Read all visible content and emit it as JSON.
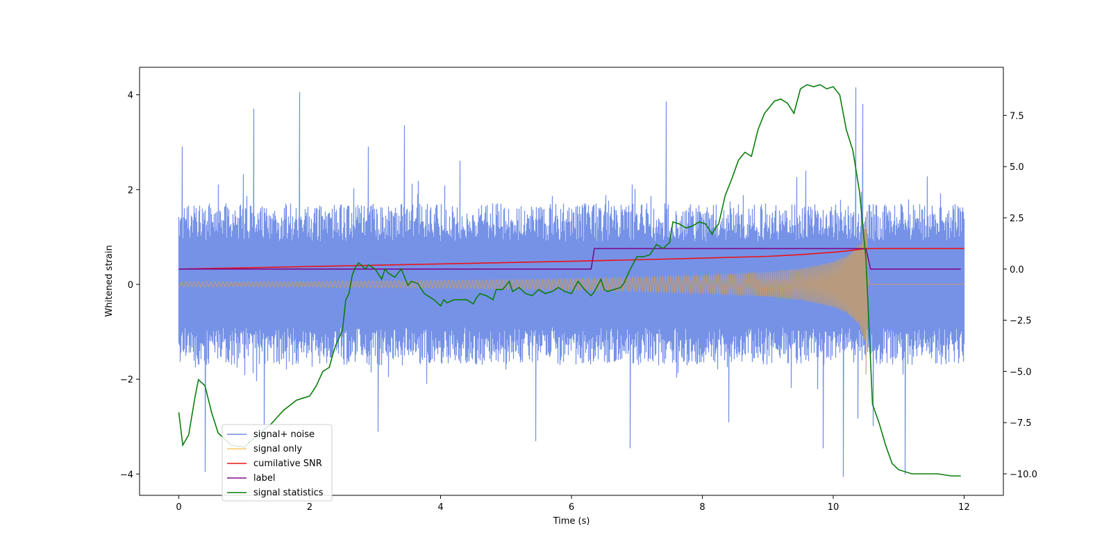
{
  "chart_data": {
    "type": "line",
    "title": "",
    "xlabel": "Time (s)",
    "ylabel_left": "Whitened strain",
    "ylabel_right": "",
    "xlim": [
      -0.6,
      12.6
    ],
    "ylim_left": [
      -4.45,
      4.58
    ],
    "ylim_right": [
      -11.05,
      9.85
    ],
    "x_ticks": [
      0,
      2,
      4,
      6,
      8,
      10,
      12
    ],
    "y_left_ticks": [
      -4,
      -2,
      0,
      2,
      4
    ],
    "y_right_ticks": [
      -10.0,
      -7.5,
      -5.0,
      -2.5,
      0.0,
      2.5,
      5.0,
      7.5
    ],
    "grid": false,
    "legend_position": "lower-left",
    "colors": {
      "signal_plus_noise": "#6f8ce6",
      "signal_only": "#f5c76b",
      "signal_overlap": "#bc9c78",
      "cumulative_snr": "#ee1111",
      "label": "#7b0a8a",
      "signal_statistics": "#0a7d0a"
    },
    "series": [
      {
        "name": "signal+ noise",
        "axis": "left",
        "description": "dense whitened strain time series, roughly Gaussian noise",
        "x_range": [
          0,
          12
        ],
        "typical_envelope": [
          -2.0,
          2.0
        ],
        "peaks_high": [
          [
            0.05,
            2.9
          ],
          [
            0.6,
            2.1
          ],
          [
            1.15,
            3.7
          ],
          [
            1.85,
            4.05
          ],
          [
            2.9,
            2.9
          ],
          [
            3.45,
            3.35
          ],
          [
            4.3,
            2.6
          ],
          [
            7.45,
            3.85
          ],
          [
            10.35,
            4.15
          ],
          [
            10.45,
            3.8
          ]
        ],
        "peaks_low": [
          [
            0.4,
            -3.95
          ],
          [
            1.3,
            -3.3
          ],
          [
            3.05,
            -3.1
          ],
          [
            5.45,
            -3.3
          ],
          [
            6.9,
            -3.45
          ],
          [
            8.4,
            -2.9
          ],
          [
            9.85,
            -3.45
          ],
          [
            10.15,
            -4.05
          ],
          [
            11.1,
            -4.0
          ]
        ]
      },
      {
        "name": "signal only",
        "axis": "left",
        "description": "chirp waveform, amplitude envelope growing toward merger then zero",
        "envelope": {
          "x": [
            0,
            2,
            4,
            6,
            7,
            8,
            9,
            9.5,
            10,
            10.2,
            10.4,
            10.5,
            10.55,
            12
          ],
          "amp": [
            0.05,
            0.06,
            0.08,
            0.12,
            0.15,
            0.19,
            0.26,
            0.33,
            0.48,
            0.6,
            0.85,
            1.3,
            0.0,
            0.0
          ]
        },
        "peak": [
          10.52,
          1.55
        ],
        "trough": [
          10.5,
          -1.9
        ]
      },
      {
        "name": "cumilative SNR",
        "axis": "right",
        "x": [
          0,
          2,
          4,
          6,
          7,
          8,
          9,
          9.5,
          10,
          10.2,
          10.4,
          10.5,
          10.55,
          12
        ],
        "y": [
          0.0,
          0.12,
          0.25,
          0.38,
          0.45,
          0.53,
          0.62,
          0.7,
          0.82,
          0.88,
          0.96,
          1.0,
          1.0,
          1.0
        ]
      },
      {
        "name": "label",
        "axis": "right",
        "x": [
          0,
          6.3,
          6.35,
          10.5,
          10.57,
          11.95
        ],
        "y": [
          0.0,
          0.0,
          1.0,
          1.0,
          0.0,
          0.0
        ]
      },
      {
        "name": "signal statistics",
        "axis": "right",
        "x": [
          0.0,
          0.06,
          0.15,
          0.25,
          0.3,
          0.4,
          0.5,
          0.6,
          0.8,
          1.0,
          1.2,
          1.4,
          1.6,
          1.8,
          1.9,
          2.0,
          2.1,
          2.2,
          2.3,
          2.35,
          2.4,
          2.5,
          2.55,
          2.6,
          2.65,
          2.7,
          2.75,
          2.85,
          2.9,
          3.0,
          3.1,
          3.15,
          3.2,
          3.3,
          3.4,
          3.5,
          3.55,
          3.65,
          3.75,
          3.8,
          3.9,
          4.0,
          4.05,
          4.1,
          4.2,
          4.3,
          4.4,
          4.5,
          4.55,
          4.6,
          4.7,
          4.8,
          4.85,
          4.95,
          5.0,
          5.05,
          5.1,
          5.2,
          5.3,
          5.4,
          5.5,
          5.6,
          5.7,
          5.8,
          5.9,
          6.0,
          6.05,
          6.1,
          6.2,
          6.3,
          6.35,
          6.45,
          6.5,
          6.55,
          6.65,
          6.75,
          6.8,
          6.9,
          7.0,
          7.1,
          7.2,
          7.3,
          7.4,
          7.5,
          7.55,
          7.65,
          7.75,
          7.85,
          7.95,
          8.05,
          8.15,
          8.2,
          8.25,
          8.35,
          8.45,
          8.55,
          8.65,
          8.75,
          8.85,
          8.95,
          9.1,
          9.2,
          9.3,
          9.4,
          9.5,
          9.6,
          9.7,
          9.8,
          9.9,
          10.0,
          10.1,
          10.2,
          10.3,
          10.4,
          10.5,
          10.6,
          10.7,
          10.8,
          10.9,
          11.0,
          11.2,
          11.4,
          11.6,
          11.8,
          11.95
        ],
        "y": [
          -7.0,
          -8.6,
          -8.1,
          -6.2,
          -5.4,
          -5.7,
          -7.0,
          -8.0,
          -8.6,
          -8.7,
          -8.1,
          -7.6,
          -6.9,
          -6.4,
          -6.3,
          -6.2,
          -5.7,
          -5.0,
          -4.8,
          -4.2,
          -3.7,
          -3.0,
          -1.5,
          -1.2,
          -0.3,
          0.1,
          0.3,
          0.0,
          0.2,
          0.0,
          -0.5,
          0.0,
          -0.2,
          -0.4,
          0.0,
          -0.8,
          -0.6,
          -0.7,
          -1.2,
          -1.3,
          -1.5,
          -1.8,
          -1.5,
          -1.65,
          -1.5,
          -1.5,
          -1.5,
          -1.7,
          -1.4,
          -1.2,
          -1.3,
          -1.5,
          -1.0,
          -1.0,
          -0.8,
          -0.6,
          -1.1,
          -0.9,
          -1.2,
          -1.3,
          -1.0,
          -1.2,
          -1.1,
          -0.9,
          -1.1,
          -1.2,
          -0.9,
          -0.6,
          -1.0,
          -1.3,
          -1.1,
          -0.5,
          -1.0,
          -1.1,
          -1.0,
          -0.9,
          -0.7,
          0.0,
          0.6,
          0.6,
          0.7,
          1.2,
          1.0,
          1.3,
          2.3,
          2.2,
          2.0,
          2.1,
          2.3,
          2.2,
          1.7,
          2.0,
          2.2,
          3.6,
          4.4,
          5.3,
          5.7,
          5.5,
          6.8,
          7.6,
          8.2,
          8.3,
          8.1,
          7.6,
          8.8,
          9.0,
          8.9,
          9.0,
          8.8,
          8.9,
          8.5,
          6.8,
          5.8,
          3.8,
          0.5,
          -6.6,
          -7.5,
          -8.6,
          -9.5,
          -9.8,
          -10.0,
          -10.0,
          -10.0,
          -10.1,
          -10.1
        ]
      }
    ]
  },
  "legend": {
    "items": [
      "signal+ noise",
      "signal only",
      "cumilative SNR",
      "label",
      "signal statistics"
    ]
  }
}
